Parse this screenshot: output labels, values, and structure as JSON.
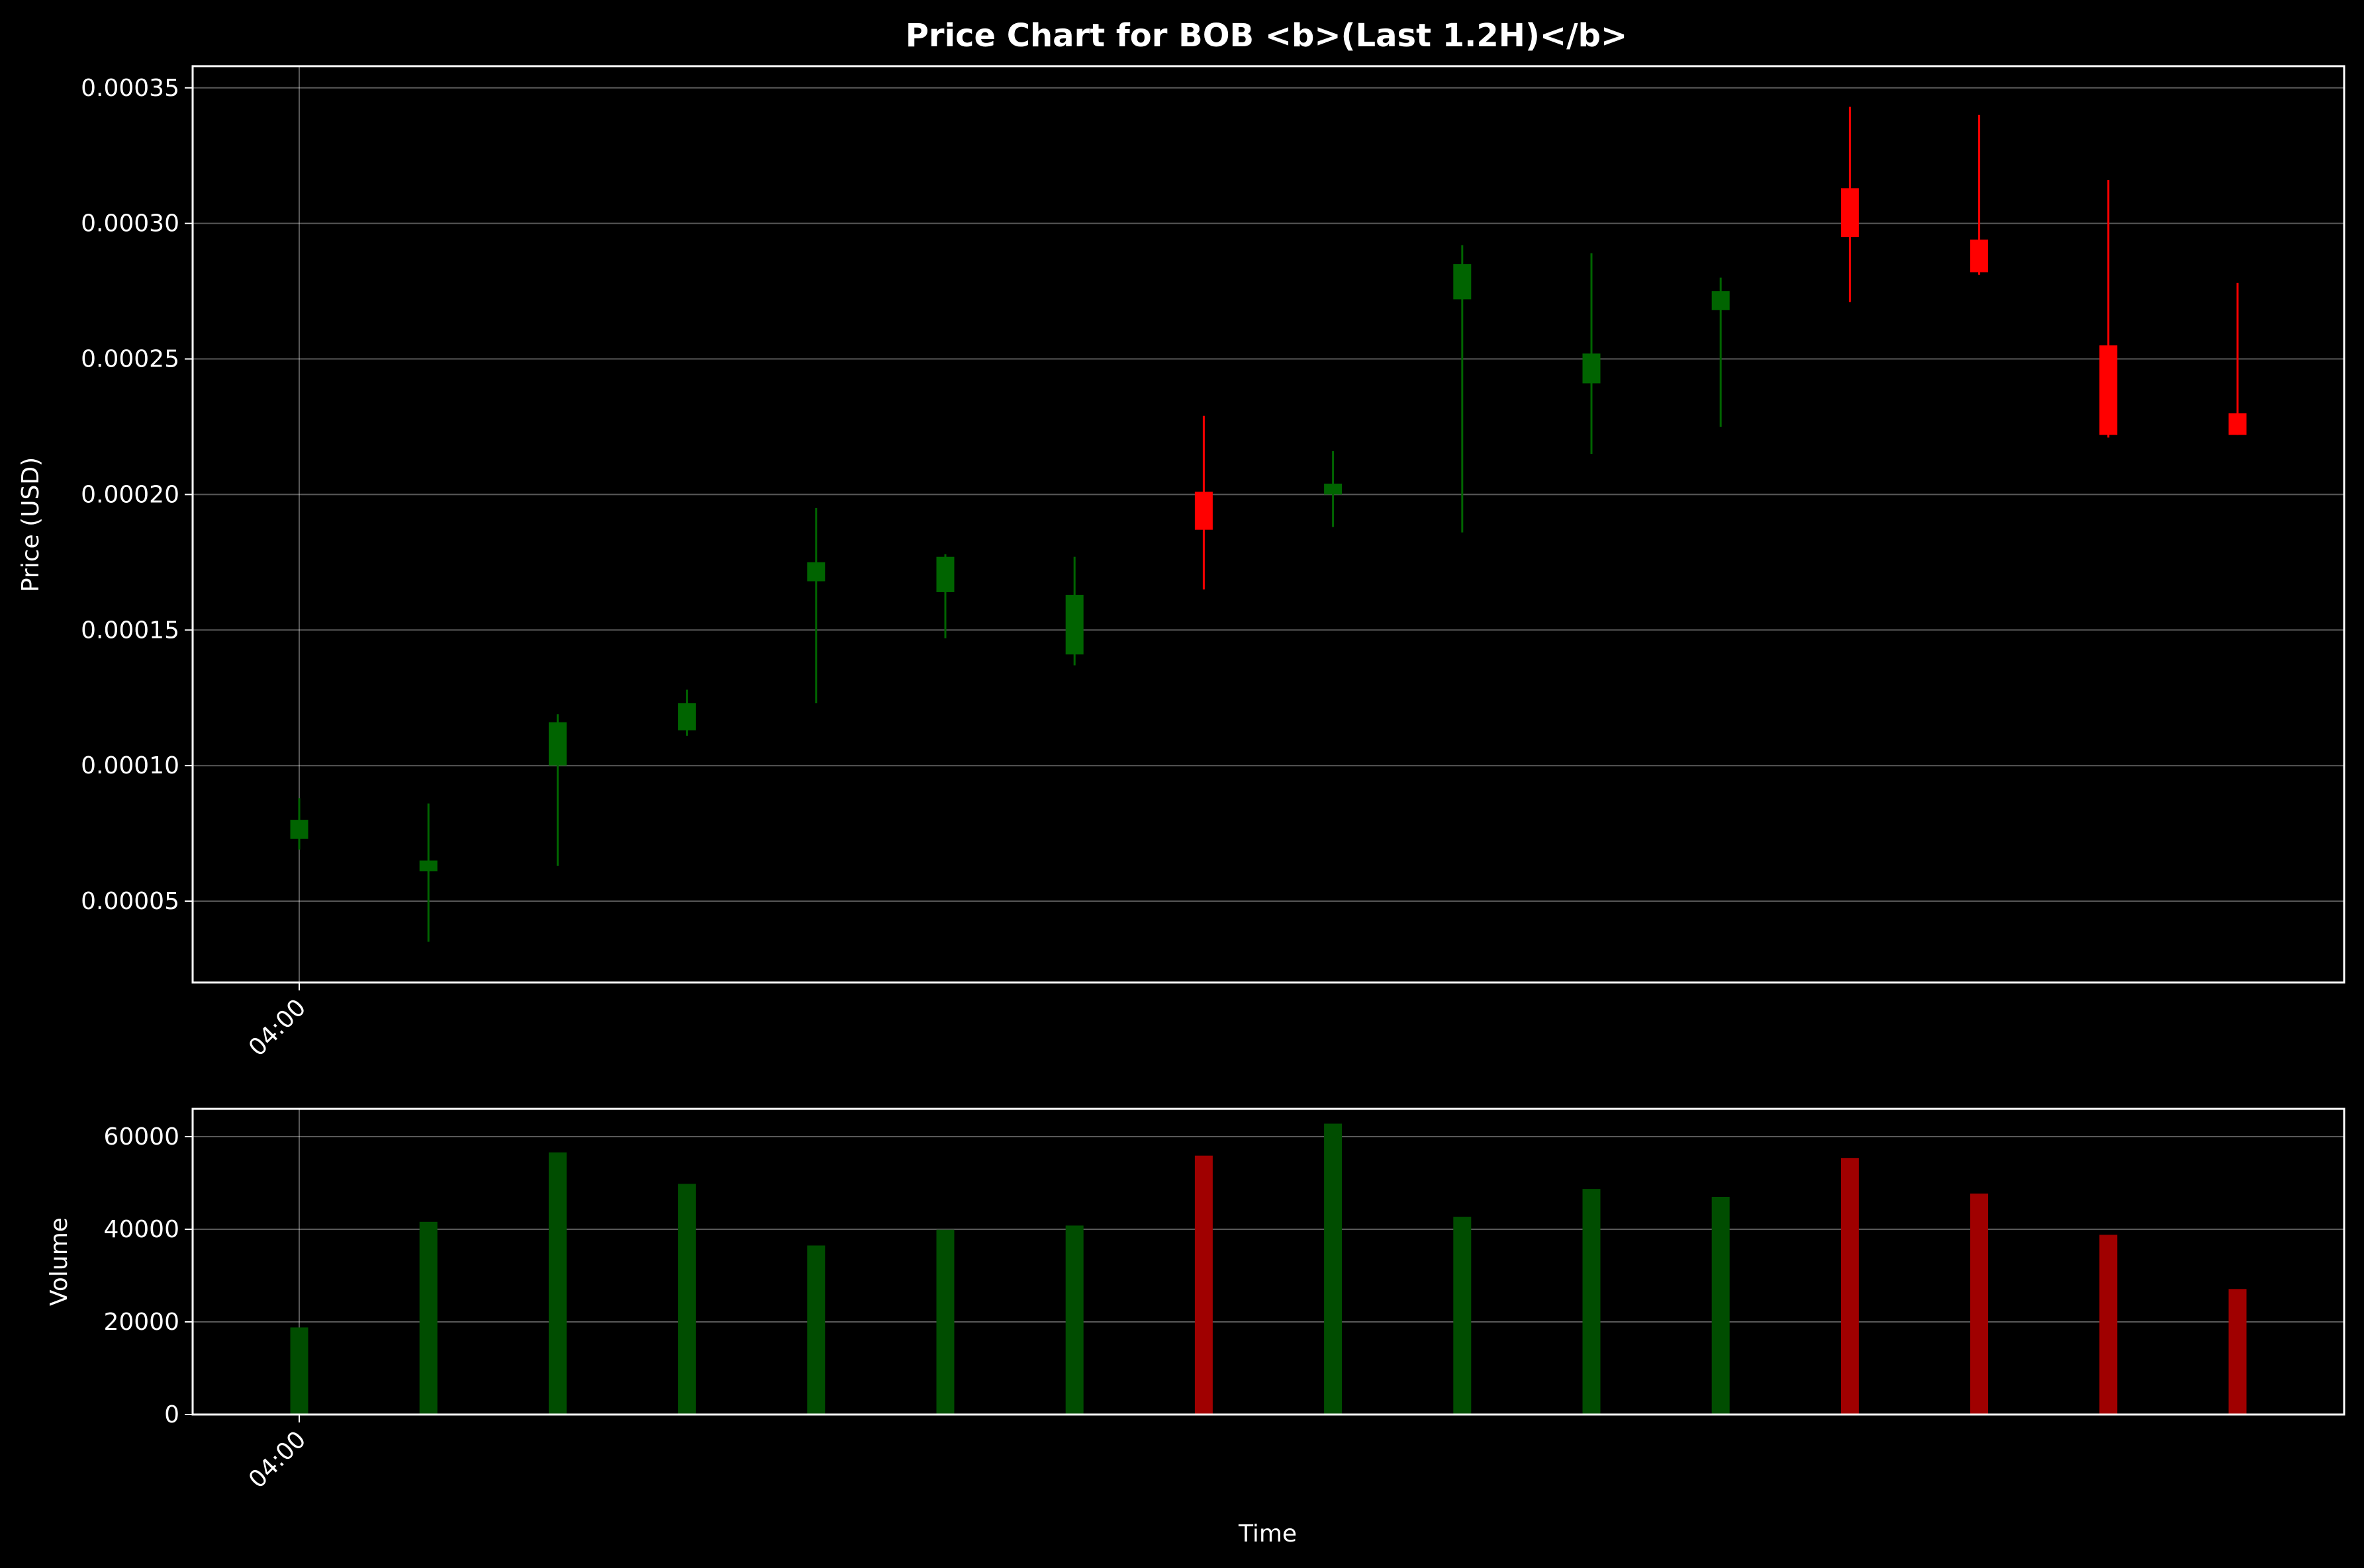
{
  "chart_data": [
    {
      "type": "candlestick",
      "title": "Price Chart for BOB <b>(Last 1.2H)</b>",
      "ylabel": "Price (USD)",
      "ylim": [
        2e-05,
        0.000358
      ],
      "yticks": [
        "0.00005",
        "0.00010",
        "0.00015",
        "0.00020",
        "0.00025",
        "0.00030",
        "0.00035"
      ],
      "ytick_values": [
        5e-05,
        0.0001,
        0.00015,
        0.0002,
        0.00025,
        0.0003,
        0.00035
      ],
      "xtick_labels": [
        "04:00"
      ],
      "grid": true,
      "colors": {
        "up": "#006400",
        "down": "#ff0000",
        "background": "#000000",
        "text": "#ffffff"
      },
      "candles": [
        {
          "open": 7.3e-05,
          "high": 8.8e-05,
          "low": 6.9e-05,
          "close": 8e-05
        },
        {
          "open": 6.1e-05,
          "high": 8.6e-05,
          "low": 3.5e-05,
          "close": 6.5e-05
        },
        {
          "open": 0.0001,
          "high": 0.000119,
          "low": 6.3e-05,
          "close": 0.000116
        },
        {
          "open": 0.000113,
          "high": 0.000128,
          "low": 0.000111,
          "close": 0.000123
        },
        {
          "open": 0.000168,
          "high": 0.000195,
          "low": 0.000123,
          "close": 0.000175
        },
        {
          "open": 0.000164,
          "high": 0.000178,
          "low": 0.000147,
          "close": 0.000177
        },
        {
          "open": 0.000141,
          "high": 0.000177,
          "low": 0.000137,
          "close": 0.000163
        },
        {
          "open": 0.000201,
          "high": 0.000229,
          "low": 0.000165,
          "close": 0.000187
        },
        {
          "open": 0.0002,
          "high": 0.000216,
          "low": 0.000188,
          "close": 0.000204
        },
        {
          "open": 0.000272,
          "high": 0.000292,
          "low": 0.000186,
          "close": 0.000285
        },
        {
          "open": 0.000241,
          "high": 0.000289,
          "low": 0.000215,
          "close": 0.000252
        },
        {
          "open": 0.000268,
          "high": 0.00028,
          "low": 0.000225,
          "close": 0.000275
        },
        {
          "open": 0.000313,
          "high": 0.000343,
          "low": 0.000271,
          "close": 0.000295
        },
        {
          "open": 0.000294,
          "high": 0.00034,
          "low": 0.000281,
          "close": 0.000282
        },
        {
          "open": 0.000255,
          "high": 0.000316,
          "low": 0.000221,
          "close": 0.000222
        },
        {
          "open": 0.00023,
          "high": 0.000278,
          "low": 0.000222,
          "close": 0.000222
        }
      ]
    },
    {
      "type": "bar",
      "xlabel": "Time",
      "ylabel": "Volume",
      "ylim": [
        0,
        66000
      ],
      "yticks": [
        "0",
        "20000",
        "40000",
        "60000"
      ],
      "ytick_values": [
        0,
        20000,
        40000,
        60000
      ],
      "xtick_labels": [
        "04:00"
      ],
      "grid": true,
      "colors": {
        "up": "#004d00",
        "down": "#a00000"
      },
      "values": [
        18800,
        41600,
        56600,
        49800,
        36500,
        39900,
        40800,
        55900,
        62800,
        42700,
        48700,
        47000,
        55400,
        47700,
        38800,
        27100
      ],
      "directions": [
        "up",
        "up",
        "up",
        "up",
        "up",
        "up",
        "up",
        "down",
        "up",
        "up",
        "up",
        "up",
        "down",
        "down",
        "down",
        "down"
      ]
    }
  ]
}
